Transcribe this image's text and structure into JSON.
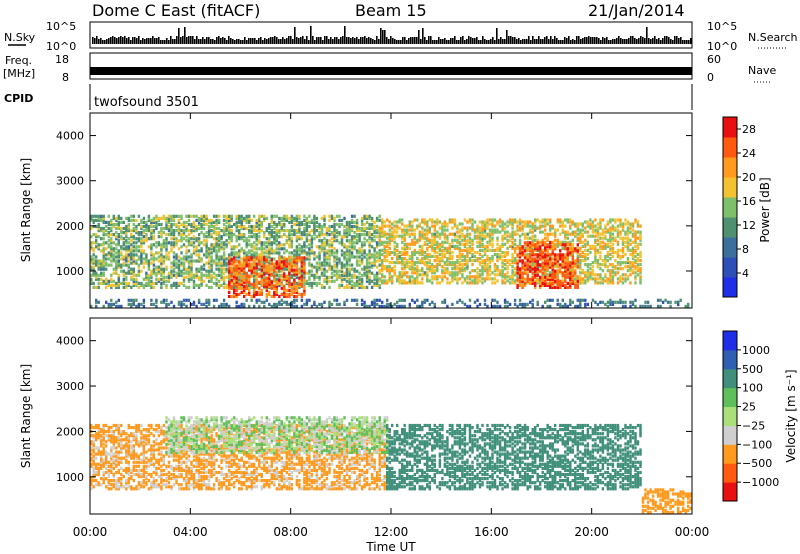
{
  "header": {
    "station": "Dome C East (fitACF)",
    "beam": "Beam 15",
    "date": "21/Jan/2014"
  },
  "panels": {
    "nsky": {
      "left_label": "N.Sky",
      "right_label": "N.Search",
      "left_ticks": [
        "10^5",
        "10^0"
      ],
      "right_ticks": [
        "10^5",
        "10^0"
      ]
    },
    "freq": {
      "left_label_1": "Freq.",
      "left_label_2": "[MHz]",
      "right_label": "Nave",
      "left_ticks": [
        "18",
        "8"
      ],
      "right_ticks": [
        "60",
        "0"
      ]
    },
    "cpid": {
      "label": "CPID",
      "program": "twofsound 3501"
    }
  },
  "colors": {
    "power": [
      "#1f2fe6",
      "#2f4fb8",
      "#3c6f9a",
      "#4f9070",
      "#7fbf6a",
      "#f2c230",
      "#ff9a1e",
      "#ff5a10",
      "#e81010"
    ],
    "velocity": [
      "#e81010",
      "#ff5a10",
      "#ff9a1e",
      "#cfcfcf",
      "#a9e07a",
      "#5fbf5a",
      "#3f8f7a",
      "#2f5fb0",
      "#1f2fe6"
    ],
    "trace": "#000000"
  },
  "chart_data": [
    {
      "type": "heatmap",
      "name": "power",
      "xlabel": "Time UT",
      "ylabel": "Slant Range [km]",
      "xlim": [
        "00:00",
        "24:00"
      ],
      "ylim": [
        180,
        4500
      ],
      "x_ticks": [
        "00:00",
        "04:00",
        "08:00",
        "12:00",
        "16:00",
        "20:00",
        "00:00"
      ],
      "y_ticks": [
        1000,
        2000,
        3000,
        4000
      ],
      "colorbar": {
        "label": "Power [dB]",
        "ticks": [
          "4",
          "8",
          "12",
          "16",
          "20",
          "24",
          "28"
        ],
        "range": [
          0,
          30
        ]
      },
      "echo_regions": [
        {
          "t_start": 0.0,
          "t_end": 11.5,
          "r_min": 600,
          "r_max": 2200,
          "value": 14,
          "note": "broad scatter"
        },
        {
          "t_start": 5.5,
          "t_end": 8.5,
          "r_min": 400,
          "r_max": 1300,
          "value": 26
        },
        {
          "t_start": 11.5,
          "t_end": 22.0,
          "r_min": 700,
          "r_max": 2100,
          "value": 18
        },
        {
          "t_start": 17.0,
          "t_end": 19.5,
          "r_min": 600,
          "r_max": 1600,
          "value": 27
        },
        {
          "t_start": 0.0,
          "t_end": 24.0,
          "r_min": 180,
          "r_max": 350,
          "value": 8
        }
      ]
    },
    {
      "type": "heatmap",
      "name": "velocity",
      "xlabel": "Time UT",
      "ylabel": "Slant Range [km]",
      "xlim": [
        "00:00",
        "24:00"
      ],
      "ylim": [
        180,
        4500
      ],
      "x_ticks": [
        "00:00",
        "04:00",
        "08:00",
        "12:00",
        "16:00",
        "20:00",
        "00:00"
      ],
      "y_ticks": [
        1000,
        2000,
        3000,
        4000
      ],
      "colorbar": {
        "label": "Velocity [m s⁻¹]",
        "ticks": [
          "1000",
          "500",
          "100",
          "25",
          "−25",
          "−100",
          "−500",
          "−1000"
        ]
      },
      "echo_regions": [
        {
          "t_start": 0.0,
          "t_end": 11.8,
          "r_min": 700,
          "r_max": 2100,
          "value": -150
        },
        {
          "t_start": 3.0,
          "t_end": 11.8,
          "r_min": 1500,
          "r_max": 2300,
          "value": 0
        },
        {
          "t_start": 11.8,
          "t_end": 22.0,
          "r_min": 700,
          "r_max": 2100,
          "value": 200
        },
        {
          "t_start": 22.0,
          "t_end": 24.0,
          "r_min": 180,
          "r_max": 700,
          "value": -300
        }
      ]
    }
  ]
}
